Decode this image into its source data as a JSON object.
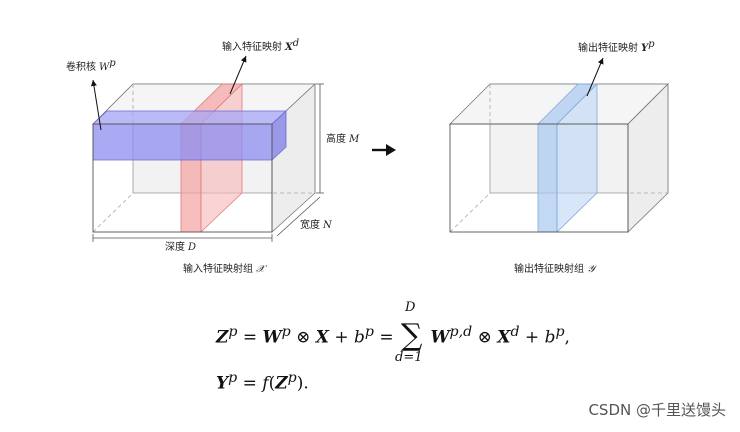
{
  "left_block": {
    "kernel_label": "卷积核",
    "kernel_symbol": "W",
    "kernel_sup": "p",
    "input_map_label": "输入特征映射",
    "input_map_symbol": "X",
    "input_map_sup": "d",
    "height_label": "高度",
    "height_symbol": "M",
    "width_label": "宽度",
    "width_symbol": "N",
    "depth_label": "深度",
    "depth_symbol": "D",
    "caption": "输入特征映射组",
    "caption_symbol": "𝒳"
  },
  "right_block": {
    "output_map_label": "输出特征映射",
    "output_map_symbol": "Y",
    "output_map_sup": "p",
    "caption": "输出特征映射组",
    "caption_symbol": "𝒴"
  },
  "colors": {
    "kernel_fill": "#8c8cf0",
    "input_slice_fill": "#f5a3a3",
    "output_slice_fill": "#a9c8f0",
    "box_fill": "#f2f2f2",
    "box_edge": "#555555"
  },
  "equation1": {
    "Z": "Z",
    "p": "p",
    "eq": "=",
    "W": "W",
    "otimes": "⊗",
    "X": "X",
    "plus": "+",
    "b": "b",
    "sum_top": "D",
    "sum_sigma": "∑",
    "sum_bottom": "d=1",
    "pd": "p,d",
    "d": "d",
    "comma": ","
  },
  "equation2": {
    "Y": "Y",
    "p": "p",
    "eq": "=",
    "f": "f",
    "lparen": "(",
    "Z": "Z",
    "rparen": ").",
    "p2": "p"
  },
  "watermark": "CSDN @千里送馒头"
}
